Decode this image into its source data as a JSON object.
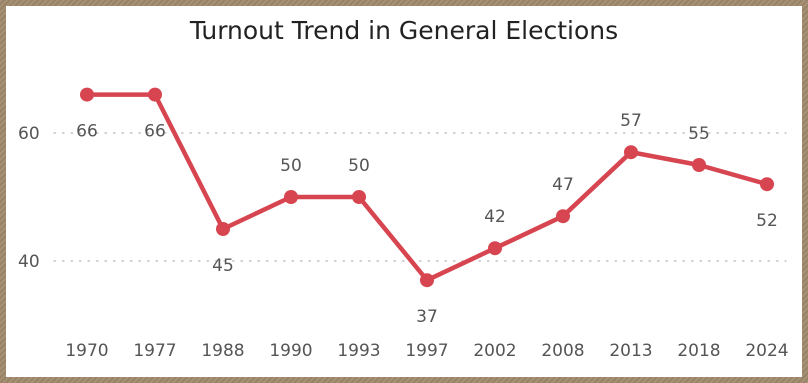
{
  "chart_data": {
    "type": "line",
    "title": "Turnout Trend in General Elections",
    "xlabel": "",
    "ylabel": "",
    "categories": [
      "1970",
      "1977",
      "1988",
      "1990",
      "1993",
      "1997",
      "2002",
      "2008",
      "2013",
      "2018",
      "2024"
    ],
    "series": [
      {
        "values": [
          66,
          66,
          45,
          50,
          50,
          37,
          42,
          47,
          57,
          55,
          52
        ],
        "color": "#d64550"
      }
    ],
    "data_labels": [
      "66",
      "66",
      "45",
      "50",
      "50",
      "37",
      "42",
      "47",
      "57",
      "55",
      "52"
    ],
    "yticks": [
      40,
      60
    ],
    "ytick_labels": [
      "40",
      "60"
    ],
    "ylim": [
      30,
      70
    ],
    "grid": true,
    "gridline_style": "dotted"
  }
}
